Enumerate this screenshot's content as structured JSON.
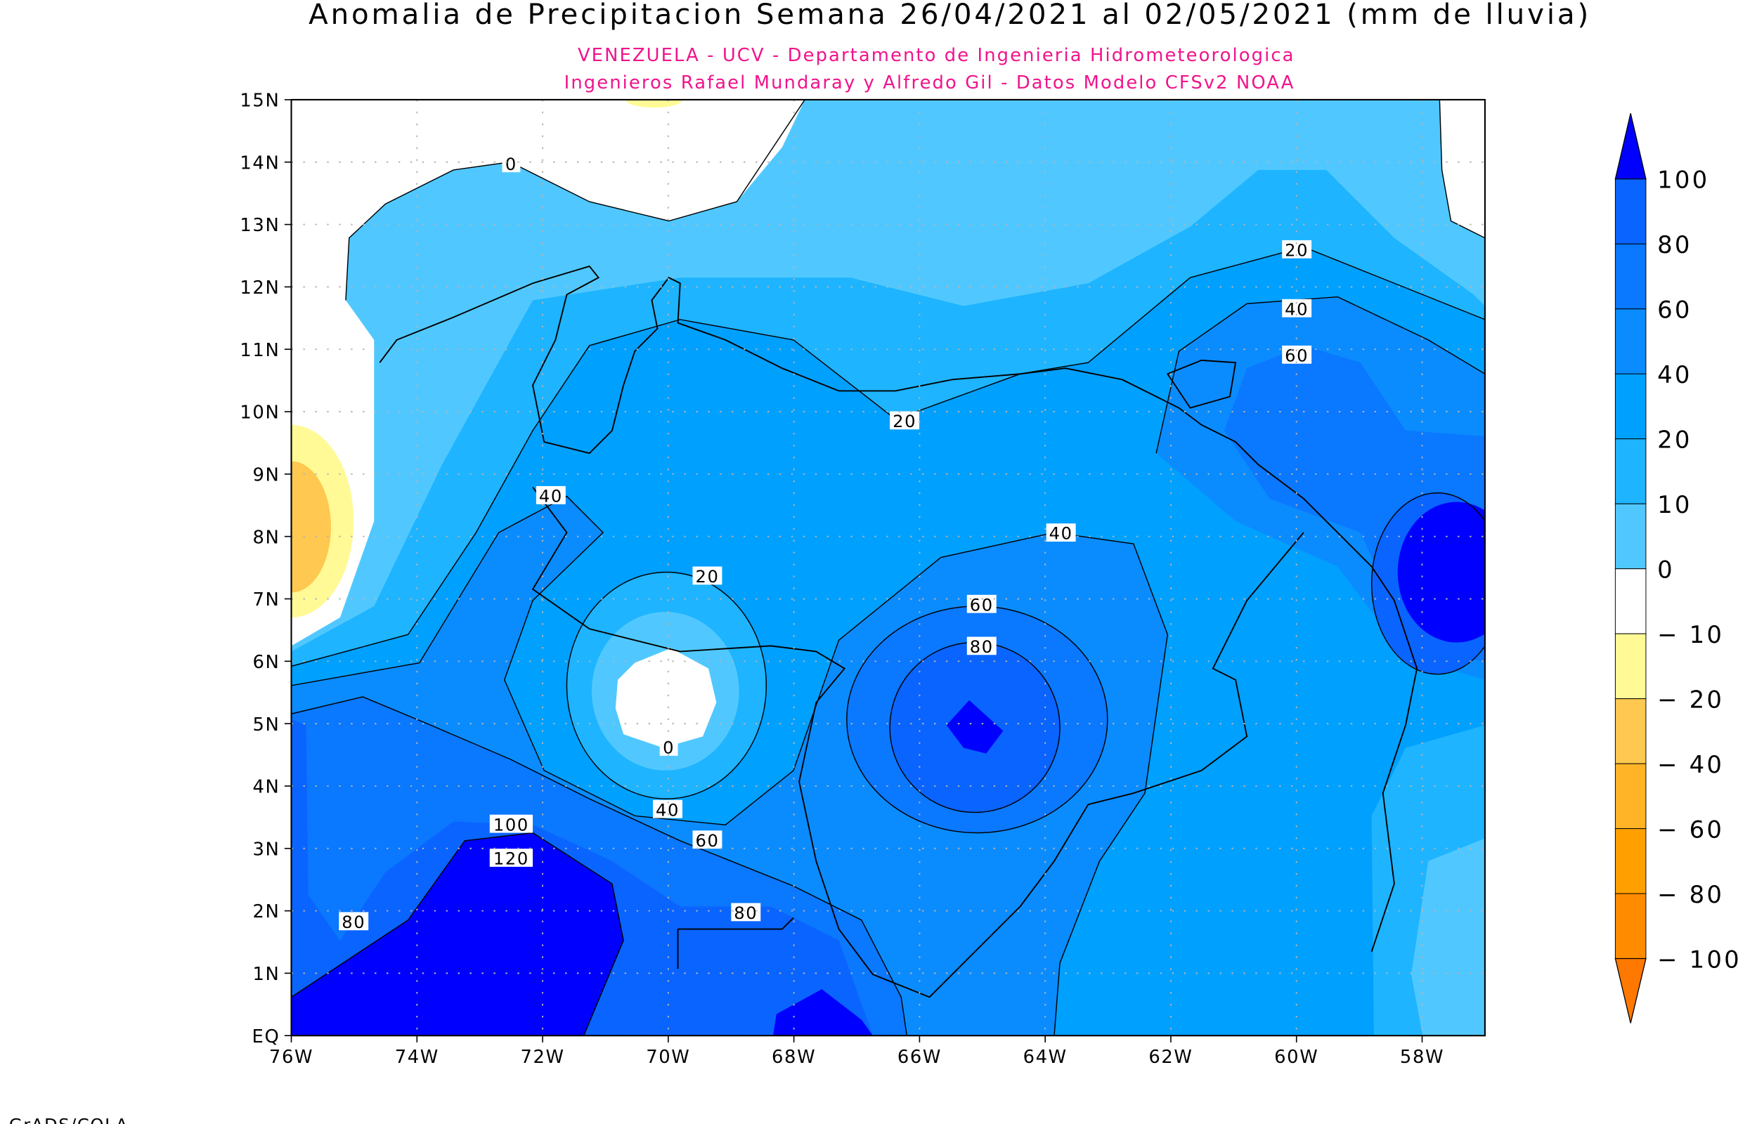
{
  "title": "Anomalia de Precipitacion Semana 26/04/2021 al 02/05/2021 (mm de lluvia)",
  "subtitle_1": "VENEZUELA - UCV - Departamento de Ingenieria Hidrometeorologica",
  "subtitle_2": "Ingenieros Rafael Mundaray y Alfredo Gil - Datos Modelo CFSv2 NOAA",
  "footer": "GrADS/COLA",
  "colors": {
    "subtitle": "#F0148C",
    "lt_-100": "#FF7800",
    "-100_-80": "#FF8C00",
    "-80_-60": "#FFA000",
    "-60_-40": "#FFB428",
    "-40_-20": "#FFC850",
    "-20_-10": "#FFFA96",
    "-10_0": "#FFFFFF",
    "0_10": "#50C8FF",
    "10_20": "#1EB4FF",
    "20_40": "#00A0FF",
    "40_60": "#0A8CFF",
    "60_80": "#0A78FF",
    "80_100": "#0A64FF",
    "gt_100": "#0000FF"
  },
  "chart_data": {
    "type": "contour-map",
    "title": "Anomalia de Precipitacion Semana 26/04/2021 al 02/05/2021 (mm de lluvia)",
    "region": "Venezuela",
    "lon_range": [
      -76,
      -57
    ],
    "lat_range": [
      0,
      15
    ],
    "x_ticks": [
      "76W",
      "74W",
      "72W",
      "70W",
      "68W",
      "66W",
      "64W",
      "62W",
      "60W",
      "58W"
    ],
    "y_ticks": [
      "EQ",
      "1N",
      "2N",
      "3N",
      "4N",
      "5N",
      "6N",
      "7N",
      "8N",
      "9N",
      "10N",
      "11N",
      "12N",
      "13N",
      "14N",
      "15N"
    ],
    "grid": true,
    "colorbar": {
      "placement": "right",
      "levels": [
        "100",
        "80",
        "60",
        "40",
        "20",
        "10",
        "0",
        "-10",
        "-20",
        "-40",
        "-60",
        "-80",
        "-100"
      ],
      "box_colors": [
        "#0A64FF",
        "#0A78FF",
        "#0A8CFF",
        "#00A0FF",
        "#1EB4FF",
        "#50C8FF",
        "#FFFFFF",
        "#FFFA96",
        "#FFC850",
        "#FFB428",
        "#FFA000",
        "#FF8C00"
      ],
      "top_arrow_color": "#0000FF",
      "bottom_arrow_color": "#FF7800"
    },
    "contour_labels": [
      "0",
      "20",
      "40",
      "60",
      "20",
      "40",
      "40",
      "20",
      "60",
      "80",
      "0",
      "40",
      "60",
      "100",
      "120",
      "80",
      "80"
    ]
  }
}
